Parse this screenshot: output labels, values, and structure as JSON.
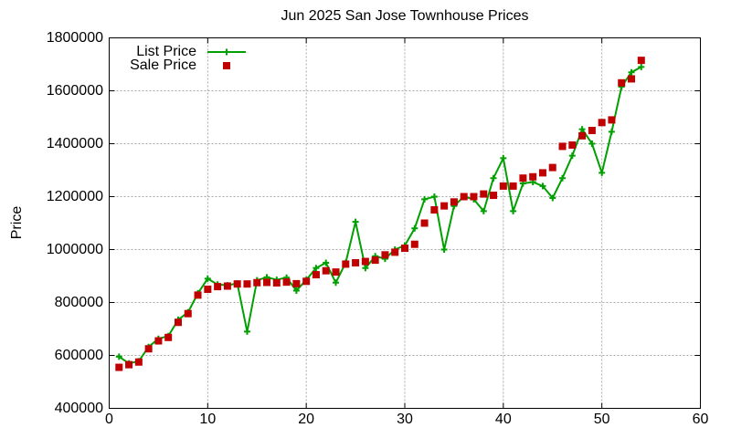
{
  "chart_data": {
    "type": "line",
    "title": "Jun 2025 San Jose Townhouse Prices",
    "xlabel": "",
    "ylabel": "Price",
    "xlim": [
      0,
      60
    ],
    "ylim": [
      400000,
      1800000
    ],
    "x_ticks": [
      0,
      10,
      20,
      30,
      40,
      50,
      60
    ],
    "y_ticks": [
      400000,
      600000,
      800000,
      1000000,
      1200000,
      1400000,
      1600000,
      1800000
    ],
    "grid": true,
    "legend_position": "top-left-inside",
    "grid_color": "#a8a8a8",
    "axis_color": "#000000",
    "x": [
      1,
      2,
      3,
      4,
      5,
      6,
      7,
      8,
      9,
      10,
      11,
      12,
      13,
      14,
      15,
      16,
      17,
      18,
      19,
      20,
      21,
      22,
      23,
      24,
      25,
      26,
      27,
      28,
      29,
      30,
      31,
      32,
      33,
      34,
      35,
      36,
      37,
      38,
      39,
      40,
      41,
      42,
      43,
      44,
      45,
      46,
      47,
      48,
      49,
      50,
      51,
      52,
      53,
      54
    ],
    "series": [
      {
        "name": "List Price",
        "color": "#00a000",
        "marker": "plus",
        "style": "line-with-marker",
        "values": [
          595000,
          570000,
          578000,
          632000,
          663000,
          673000,
          735000,
          763000,
          835000,
          890000,
          868000,
          865000,
          872000,
          690000,
          884000,
          895000,
          886000,
          894000,
          845000,
          886000,
          930000,
          950000,
          875000,
          950000,
          1105000,
          930000,
          975000,
          965000,
          1000000,
          1015000,
          1080000,
          1190000,
          1200000,
          1000000,
          1165000,
          1200000,
          1190000,
          1145000,
          1270000,
          1345000,
          1145000,
          1250000,
          1255000,
          1240000,
          1195000,
          1270000,
          1355000,
          1455000,
          1400000,
          1290000,
          1445000,
          1615000,
          1670000,
          1690000
        ]
      },
      {
        "name": "Sale Price",
        "color": "#c00000",
        "marker": "square",
        "style": "marker-only",
        "values": [
          555000,
          565000,
          575000,
          625000,
          655000,
          668000,
          725000,
          758000,
          828000,
          850000,
          860000,
          862000,
          870000,
          870000,
          875000,
          876000,
          874000,
          877000,
          871000,
          880000,
          905000,
          920000,
          915000,
          945000,
          950000,
          955000,
          960000,
          980000,
          990000,
          1005000,
          1020000,
          1100000,
          1150000,
          1165000,
          1180000,
          1200000,
          1200000,
          1210000,
          1205000,
          1240000,
          1240000,
          1270000,
          1275000,
          1290000,
          1310000,
          1390000,
          1395000,
          1430000,
          1450000,
          1480000,
          1490000,
          1630000,
          1645000,
          1715000
        ]
      }
    ]
  }
}
